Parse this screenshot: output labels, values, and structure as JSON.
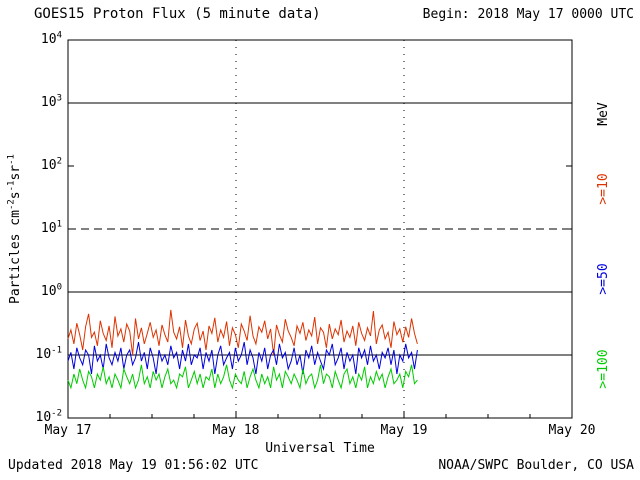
{
  "header": {
    "title": "GOES15 Proton Flux (5 minute data)",
    "begin_label": "Begin: 2018 May 17 0000 UTC"
  },
  "footer": {
    "updated": "Updated 2018 May 19 01:56:02 UTC",
    "source": "NOAA/SWPC Boulder, CO USA"
  },
  "axes": {
    "x_title": "Universal Time",
    "y_title": "Particles cm⁻²s⁻¹sr⁻¹",
    "y_title_parts": [
      "Particles cm",
      {
        "sup": "-2"
      },
      "s",
      {
        "sup": "-1"
      },
      "sr",
      {
        "sup": "-1"
      }
    ],
    "y_ticks": [
      {
        "exp": "4",
        "value": 10000
      },
      {
        "exp": "3",
        "value": 1000
      },
      {
        "exp": "2",
        "value": 100
      },
      {
        "exp": "1",
        "value": 10
      },
      {
        "exp": "0",
        "value": 1
      },
      {
        "exp": "-1",
        "value": 0.1
      },
      {
        "exp": "-2",
        "value": 0.01
      }
    ],
    "x_ticks": [
      {
        "label": "May 17",
        "day": 0
      },
      {
        "label": "May 18",
        "day": 1
      },
      {
        "label": "May 19",
        "day": 2
      },
      {
        "label": "May 20",
        "day": 3
      }
    ]
  },
  "right_labels": {
    "units": "MeV",
    "series": [
      {
        "label": ">=10",
        "color": "#dd3300"
      },
      {
        "label": ">=50",
        "color": "#0000dd"
      },
      {
        "label": ">=100",
        "color": "#00cc00"
      }
    ]
  },
  "chart_data": {
    "type": "line",
    "title": "GOES15 Proton Flux (5 minute data)",
    "xlabel": "Universal Time",
    "ylabel": "Particles cm-2 s-1 sr-1",
    "x_axis": {
      "unit": "days since 2018 May 17 0000 UTC",
      "range": [
        0,
        3
      ],
      "tick_labels": [
        "May 17",
        "May 18",
        "May 19",
        "May 20"
      ],
      "grid_days": [
        1,
        2
      ]
    },
    "y_axis": {
      "scale": "log",
      "range": [
        0.01,
        10000
      ],
      "tick_values": [
        10000,
        1000,
        100,
        10,
        1,
        0.1,
        0.01
      ]
    },
    "reference_lines": [
      {
        "y": 1000,
        "style": "solid"
      },
      {
        "y": 10,
        "style": "dashed"
      },
      {
        "y": 1,
        "style": "solid"
      },
      {
        "y": 0.1,
        "style": "solid"
      }
    ],
    "series": [
      {
        "name": ">=10 MeV",
        "color": "#dd3300",
        "x_start": 0,
        "x_end": 2.08,
        "values": [
          0.18,
          0.25,
          0.15,
          0.32,
          0.21,
          0.12,
          0.28,
          0.45,
          0.19,
          0.23,
          0.14,
          0.35,
          0.22,
          0.17,
          0.29,
          0.13,
          0.41,
          0.2,
          0.26,
          0.16,
          0.31,
          0.24,
          0.1,
          0.38,
          0.18,
          0.27,
          0.15,
          0.22,
          0.33,
          0.19,
          0.25,
          0.14,
          0.3,
          0.21,
          0.16,
          0.52,
          0.23,
          0.18,
          0.28,
          0.13,
          0.36,
          0.2,
          0.15,
          0.26,
          0.32,
          0.17,
          0.24,
          0.12,
          0.29,
          0.22,
          0.39,
          0.16,
          0.25,
          0.19,
          0.34,
          0.14,
          0.27,
          0.21,
          0.13,
          0.31,
          0.24,
          0.17,
          0.42,
          0.2,
          0.15,
          0.28,
          0.23,
          0.35,
          0.18,
          0.26,
          0.1,
          0.3,
          0.21,
          0.16,
          0.37,
          0.24,
          0.19,
          0.14,
          0.29,
          0.22,
          0.33,
          0.17,
          0.25,
          0.2,
          0.4,
          0.15,
          0.27,
          0.23,
          0.13,
          0.31,
          0.18,
          0.26,
          0.21,
          0.36,
          0.16,
          0.24,
          0.19,
          0.29,
          0.14,
          0.33,
          0.22,
          0.17,
          0.27,
          0.2,
          0.5,
          0.15,
          0.25,
          0.3,
          0.18,
          0.23,
          0.13,
          0.34,
          0.21,
          0.26,
          0.16,
          0.28,
          0.19,
          0.38,
          0.22,
          0.15
        ]
      },
      {
        "name": ">=50 MeV",
        "color": "#0000dd",
        "x_start": 0,
        "x_end": 2.08,
        "values": [
          0.08,
          0.11,
          0.06,
          0.13,
          0.09,
          0.07,
          0.12,
          0.1,
          0.05,
          0.14,
          0.08,
          0.1,
          0.06,
          0.15,
          0.09,
          0.07,
          0.11,
          0.08,
          0.13,
          0.06,
          0.1,
          0.12,
          0.07,
          0.09,
          0.16,
          0.08,
          0.11,
          0.06,
          0.13,
          0.09,
          0.05,
          0.12,
          0.08,
          0.1,
          0.07,
          0.14,
          0.09,
          0.11,
          0.06,
          0.12,
          0.08,
          0.15,
          0.07,
          0.1,
          0.09,
          0.13,
          0.06,
          0.11,
          0.08,
          0.12,
          0.05,
          0.1,
          0.14,
          0.07,
          0.09,
          0.11,
          0.06,
          0.13,
          0.08,
          0.1,
          0.16,
          0.07,
          0.12,
          0.09,
          0.05,
          0.11,
          0.08,
          0.13,
          0.06,
          0.1,
          0.12,
          0.07,
          0.15,
          0.09,
          0.11,
          0.06,
          0.08,
          0.13,
          0.07,
          0.1,
          0.05,
          0.12,
          0.09,
          0.14,
          0.07,
          0.11,
          0.08,
          0.06,
          0.12,
          0.1,
          0.15,
          0.07,
          0.09,
          0.13,
          0.06,
          0.11,
          0.08,
          0.1,
          0.05,
          0.13,
          0.09,
          0.12,
          0.07,
          0.14,
          0.08,
          0.1,
          0.06,
          0.11,
          0.09,
          0.13,
          0.07,
          0.12,
          0.05,
          0.1,
          0.08,
          0.15,
          0.09,
          0.11,
          0.06,
          0.12
        ]
      },
      {
        "name": ">=100 MeV",
        "color": "#00cc00",
        "x_start": 0,
        "x_end": 2.08,
        "values": [
          0.04,
          0.03,
          0.05,
          0.035,
          0.06,
          0.04,
          0.03,
          0.055,
          0.045,
          0.03,
          0.05,
          0.04,
          0.065,
          0.035,
          0.045,
          0.03,
          0.05,
          0.04,
          0.03,
          0.06,
          0.045,
          0.035,
          0.05,
          0.03,
          0.04,
          0.07,
          0.035,
          0.045,
          0.03,
          0.055,
          0.04,
          0.05,
          0.03,
          0.045,
          0.06,
          0.035,
          0.04,
          0.03,
          0.05,
          0.045,
          0.065,
          0.03,
          0.04,
          0.055,
          0.035,
          0.05,
          0.03,
          0.045,
          0.04,
          0.06,
          0.03,
          0.05,
          0.035,
          0.045,
          0.07,
          0.04,
          0.03,
          0.05,
          0.04,
          0.035,
          0.055,
          0.03,
          0.045,
          0.06,
          0.04,
          0.03,
          0.05,
          0.035,
          0.045,
          0.03,
          0.065,
          0.04,
          0.05,
          0.03,
          0.055,
          0.045,
          0.035,
          0.05,
          0.04,
          0.03,
          0.06,
          0.035,
          0.045,
          0.05,
          0.03,
          0.04,
          0.07,
          0.035,
          0.05,
          0.045,
          0.03,
          0.055,
          0.04,
          0.03,
          0.05,
          0.06,
          0.035,
          0.045,
          0.03,
          0.05,
          0.04,
          0.065,
          0.03,
          0.045,
          0.035,
          0.055,
          0.04,
          0.05,
          0.03,
          0.045,
          0.06,
          0.035,
          0.04,
          0.05,
          0.03,
          0.055,
          0.045,
          0.07,
          0.035,
          0.04
        ]
      }
    ]
  }
}
